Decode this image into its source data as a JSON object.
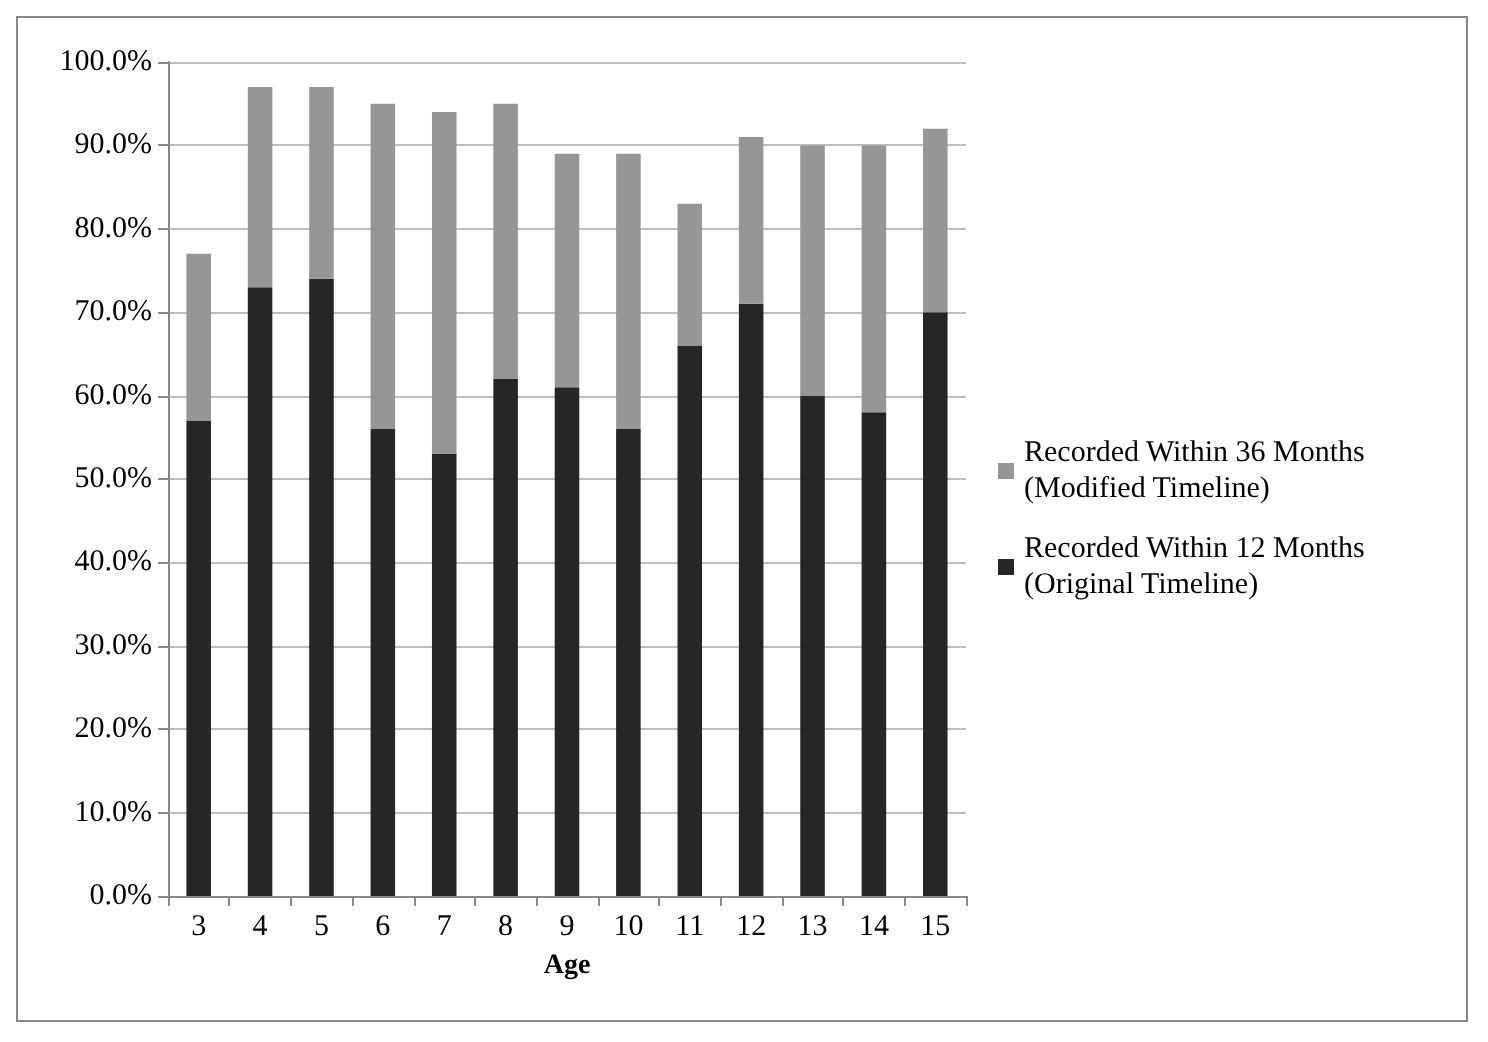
{
  "chart_data": {
    "type": "bar",
    "stacked": true,
    "xlabel": "Age",
    "categories": [
      "3",
      "4",
      "5",
      "6",
      "7",
      "8",
      "9",
      "10",
      "11",
      "12",
      "13",
      "14",
      "15"
    ],
    "series": [
      {
        "name": "Recorded Within 12 Months (Original Timeline)",
        "color": "#262626",
        "values": [
          57,
          73,
          74,
          56,
          53,
          62,
          61,
          56,
          66,
          71,
          60,
          58,
          70
        ]
      },
      {
        "name": "Recorded Within 36 Months (Modified Timeline)",
        "color": "#969696",
        "values": [
          20,
          24,
          23,
          39,
          41,
          33,
          28,
          33,
          17,
          20,
          30,
          32,
          22
        ]
      }
    ],
    "ylim": [
      0,
      100
    ],
    "yticks": [
      {
        "value": 0,
        "label": "0.0%"
      },
      {
        "value": 10,
        "label": "10.0%"
      },
      {
        "value": 20,
        "label": "20.0%"
      },
      {
        "value": 30,
        "label": "30.0%"
      },
      {
        "value": 40,
        "label": "40.0%"
      },
      {
        "value": 50,
        "label": "50.0%"
      },
      {
        "value": 60,
        "label": "60.0%"
      },
      {
        "value": 70,
        "label": "70.0%"
      },
      {
        "value": 80,
        "label": "80.0%"
      },
      {
        "value": 90,
        "label": "90.0%"
      },
      {
        "value": 100,
        "label": "100.0%"
      }
    ],
    "grid": "y",
    "legend": "right"
  }
}
